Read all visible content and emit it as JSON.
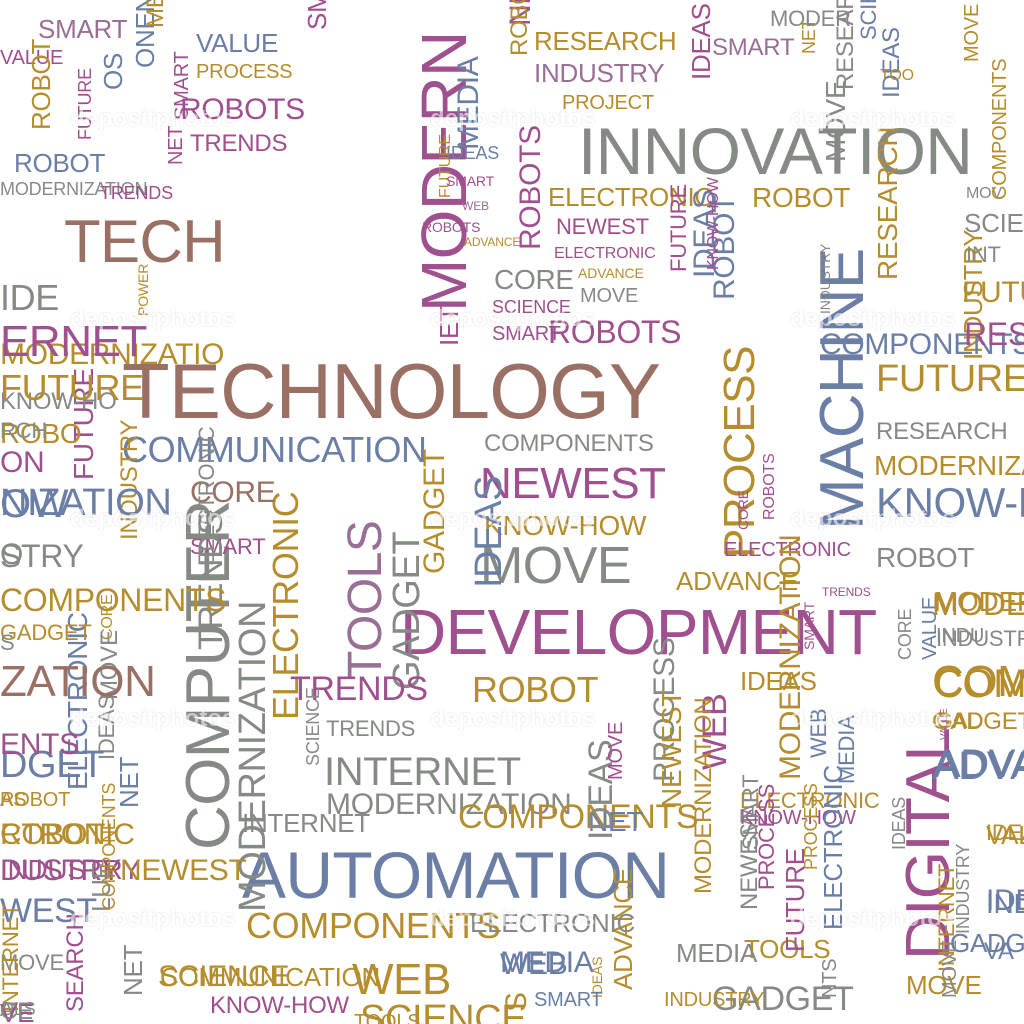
{
  "palette": {
    "brown": "#9b7064",
    "gold": "#b58d2d",
    "purple": "#a04f8f",
    "blue": "#6a7ea6",
    "gray": "#868a84",
    "sage": "#8a8f78",
    "mauve": "#9a6f95"
  },
  "watermark": "depositphotos",
  "words": [
    {
      "text": "TECHNOLOGY"
    },
    {
      "text": "INNOVATION"
    },
    {
      "text": "DEVELOPMENT"
    },
    {
      "text": "AUTOMATION"
    },
    {
      "text": "MACHINE"
    },
    {
      "text": "COMPUTER"
    },
    {
      "text": "DIGITAL"
    },
    {
      "text": "MODERN"
    },
    {
      "text": "TECH"
    },
    {
      "text": "COMMUNICATION"
    },
    {
      "text": "NEWEST"
    },
    {
      "text": "MOVE"
    },
    {
      "text": "INTERNET"
    },
    {
      "text": "PROCESS"
    },
    {
      "text": "TOOLS"
    },
    {
      "text": "GADGET"
    },
    {
      "text": "ROBOTS"
    },
    {
      "text": "RESEARCH"
    },
    {
      "text": "INDUSTRY"
    },
    {
      "text": "COMPONENTS"
    },
    {
      "text": "KNOW-HOW"
    },
    {
      "text": "ADVANCE"
    },
    {
      "text": "SCIENCE"
    },
    {
      "text": "WEB"
    },
    {
      "text": "MEDIA"
    },
    {
      "text": "ELECTRONIC"
    },
    {
      "text": "MODERNIZATION"
    },
    {
      "text": "TRENDS"
    },
    {
      "text": "IDEAS"
    },
    {
      "text": "SMART"
    },
    {
      "text": "CORE"
    },
    {
      "text": "ROBOT"
    },
    {
      "text": "FUTURE"
    },
    {
      "text": "VALUE"
    },
    {
      "text": "NET"
    },
    {
      "text": "PROJECT"
    },
    {
      "text": "POWER"
    },
    {
      "text": "INDUSTRY"
    },
    {
      "text": "PROCESS"
    },
    {
      "text": "INDUSTRY"
    },
    {
      "text": "SMART"
    },
    {
      "text": "RESEARCH"
    },
    {
      "text": "ROBOT"
    },
    {
      "text": "VALUE"
    },
    {
      "text": "MOVE"
    },
    {
      "text": "CORE"
    },
    {
      "text": "TRENDS"
    },
    {
      "text": "ROBOTS"
    },
    {
      "text": "MODERNIZATION"
    },
    {
      "text": "MEDIA"
    },
    {
      "text": "IDEAS"
    },
    {
      "text": "FUTURE"
    },
    {
      "text": "SMART"
    },
    {
      "text": "WEB"
    },
    {
      "text": "ROBOTS"
    },
    {
      "text": "ADVANCE"
    },
    {
      "text": "TRENDS"
    },
    {
      "text": "ELECTRONIC"
    },
    {
      "text": "NEWEST"
    },
    {
      "text": "ELECTRONIC"
    },
    {
      "text": "CORE"
    },
    {
      "text": "ADVANCE"
    },
    {
      "text": "MOVE"
    },
    {
      "text": "SCIENCE"
    },
    {
      "text": "SMART"
    },
    {
      "text": "ROBOTS"
    },
    {
      "text": "FUTURE"
    },
    {
      "text": "IDEAS"
    },
    {
      "text": "ROBOT"
    },
    {
      "text": "NET"
    },
    {
      "text": "RESEARCH"
    },
    {
      "text": "MOVE"
    },
    {
      "text": "INDUSTRY"
    },
    {
      "text": "COMPONENTS"
    },
    {
      "text": "IDEAS"
    },
    {
      "text": "FUTURE"
    },
    {
      "text": "RESEARCH"
    },
    {
      "text": "MODERNIZATION"
    },
    {
      "text": "KNOW-HOW"
    },
    {
      "text": "ROBOT"
    },
    {
      "text": "MODERNIZATION"
    },
    {
      "text": "INDUSTRY"
    },
    {
      "text": "COMPONENTS"
    },
    {
      "text": "GADGET"
    },
    {
      "text": "ADVANCE"
    },
    {
      "text": "IDEAS"
    },
    {
      "text": "VALUE"
    },
    {
      "text": "CORE"
    },
    {
      "text": "ELECTRONIC"
    },
    {
      "text": "ROBOTS"
    },
    {
      "text": "TRENDS"
    },
    {
      "text": "ELECTRONIC"
    },
    {
      "text": "PROCESS"
    },
    {
      "text": "SMART"
    },
    {
      "text": "ELECTRONIC"
    },
    {
      "text": "CORE"
    },
    {
      "text": "FUTURE"
    },
    {
      "text": "SMART"
    },
    {
      "text": "TRENDS"
    },
    {
      "text": "GADGET"
    },
    {
      "text": "SCIENCE"
    },
    {
      "text": "IDEAS"
    },
    {
      "text": "KNOW-HOW"
    },
    {
      "text": "TRENDS"
    },
    {
      "text": "MODERNIZATION"
    },
    {
      "text": "INTERNET"
    },
    {
      "text": "COMPONENTS"
    },
    {
      "text": "NET"
    },
    {
      "text": "ROBOT"
    },
    {
      "text": "PROCESS"
    },
    {
      "text": "IDEAS"
    },
    {
      "text": "MOVE"
    },
    {
      "text": "NEWEST"
    },
    {
      "text": "WEB"
    },
    {
      "text": "SMART"
    },
    {
      "text": "MODERNIZATION"
    },
    {
      "text": "WEB"
    },
    {
      "text": "MEDIA"
    },
    {
      "text": "TOOLS"
    },
    {
      "text": "KNOW-HOW"
    },
    {
      "text": "PROCESS"
    },
    {
      "text": "ELECTRONIC"
    },
    {
      "text": "FUTURE"
    },
    {
      "text": "NEWEST"
    },
    {
      "text": "MODERNIZATION"
    },
    {
      "text": "NET"
    },
    {
      "text": "INTERNET"
    },
    {
      "text": "INDUSTRY"
    },
    {
      "text": "COMPONENTS"
    },
    {
      "text": "ADVANCE"
    },
    {
      "text": "IDEAS"
    },
    {
      "text": "ELECTRONIC"
    },
    {
      "text": "COMMUNICATION"
    },
    {
      "text": "SCIENCE"
    },
    {
      "text": "WEB"
    },
    {
      "text": "MEDIA"
    },
    {
      "text": "KNOW-HOW"
    },
    {
      "text": "SMART"
    },
    {
      "text": "TOOLS"
    },
    {
      "text": "GADGET"
    },
    {
      "text": "MOVE"
    },
    {
      "text": "GADGET"
    },
    {
      "text": "IDEAS"
    },
    {
      "text": "VALUE"
    },
    {
      "text": "INDUSTRY"
    },
    {
      "text": "NEWEST"
    },
    {
      "text": "NET"
    },
    {
      "text": "ROBOT"
    },
    {
      "text": "ELECTRONIC"
    },
    {
      "text": "IDEAS"
    },
    {
      "text": "MOVE"
    },
    {
      "text": "ROBOT"
    },
    {
      "text": "INDUSTRY"
    },
    {
      "text": "GADGET"
    },
    {
      "text": "COMPONENTS"
    },
    {
      "text": "STRY"
    },
    {
      "text": "NIZATION"
    },
    {
      "text": "ROBO"
    },
    {
      "text": "KNOW-HO"
    },
    {
      "text": "MODERNIZATIO"
    },
    {
      "text": "RESEAR"
    },
    {
      "text": "FUTU"
    },
    {
      "text": "INT"
    },
    {
      "text": "SCIEN"
    },
    {
      "text": "MOV"
    },
    {
      "text": "MODER"
    },
    {
      "text": "MODERN"
    },
    {
      "text": "INDU"
    },
    {
      "text": "COMPO"
    },
    {
      "text": "GAD"
    },
    {
      "text": "ADVAN"
    },
    {
      "text": "IDEA"
    },
    {
      "text": "IND"
    },
    {
      "text": "VA"
    },
    {
      "text": "IDE"
    },
    {
      "text": "ERNET"
    },
    {
      "text": "FUTURE"
    },
    {
      "text": "RCH"
    },
    {
      "text": "ON"
    },
    {
      "text": "OW"
    },
    {
      "text": "O"
    },
    {
      "text": "ZATION"
    },
    {
      "text": "DGET"
    },
    {
      "text": "AS"
    },
    {
      "text": "CTRONIC"
    },
    {
      "text": "DUSTRY"
    },
    {
      "text": "WEST"
    },
    {
      "text": "LUE"
    },
    {
      "text": "MOVE"
    },
    {
      "text": "COMPONENTS"
    },
    {
      "text": "VALUE"
    },
    {
      "text": "SMART"
    },
    {
      "text": "ROBOT"
    },
    {
      "text": "INTERNET"
    },
    {
      "text": "SEARCH"
    },
    {
      "text": "OLS"
    },
    {
      "text": "A"
    },
    {
      "text": "ENTS"
    },
    {
      "text": "VE"
    },
    {
      "text": "S"
    },
    {
      "text": "CE"
    },
    {
      "text": "S"
    },
    {
      "text": "ONENTS"
    },
    {
      "text": "ME"
    },
    {
      "text": "NE"
    },
    {
      "text": "IET"
    },
    {
      "text": "SMART"
    },
    {
      "text": "OS"
    },
    {
      "text": "IDEAS"
    },
    {
      "text": "ROBOT"
    },
    {
      "text": "SCIE"
    },
    {
      "text": "TOO"
    },
    {
      "text": "COMPONENTS"
    },
    {
      "text": "NTS"
    },
    {
      "text": "MOVE"
    },
    {
      "text": "ROBOT"
    }
  ]
}
